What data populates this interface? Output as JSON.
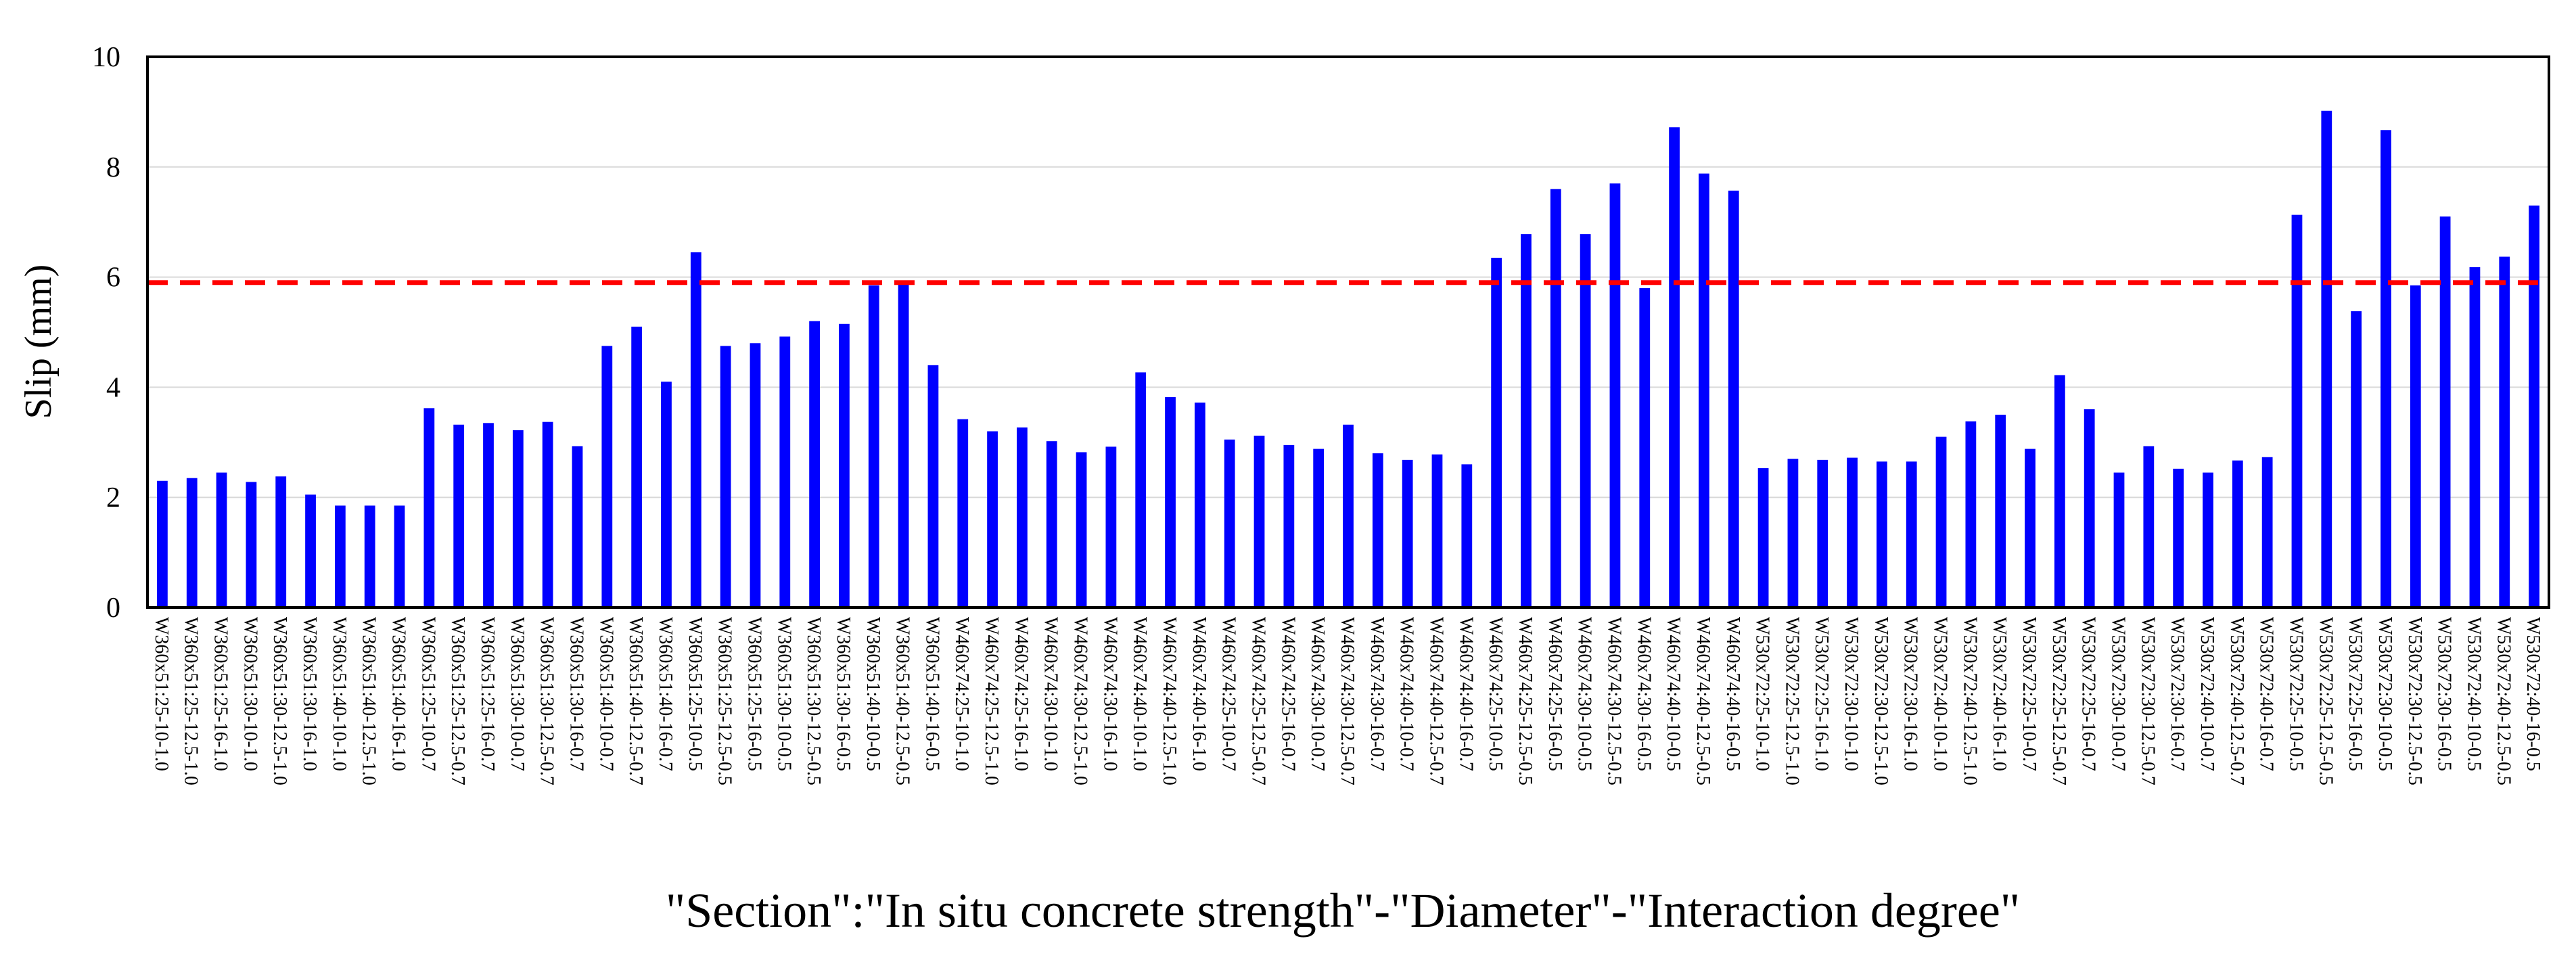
{
  "chart_data": {
    "type": "bar",
    "title": "",
    "xlabel": "\"Section\":\"In situ concrete strength\"-\"Diameter\"-\"Interaction degree\"",
    "ylabel": "Slip (mm)",
    "ylim": [
      0,
      10
    ],
    "yticks": [
      "0",
      "2",
      "4",
      "6",
      "8",
      "10"
    ],
    "grid": true,
    "legend": "none",
    "colors": {
      "bar": "#0000ff",
      "reference_line": "#ff0000",
      "grid": "#d9d9d9",
      "frame": "#000000"
    },
    "reference_line": {
      "y": 5.9,
      "style": "dashed"
    },
    "categories": [
      "W360x51:25-10-1.0",
      "W360x51:25-12.5-1.0",
      "W360x51:25-16-1.0",
      "W360x51:30-10-1.0",
      "W360x51:30-12.5-1.0",
      "W360x51:30-16-1.0",
      "W360x51:40-10-1.0",
      "W360x51:40-12.5-1.0",
      "W360x51:40-16-1.0",
      "W360x51:25-10-0.7",
      "W360x51:25-12.5-0.7",
      "W360x51:25-16-0.7",
      "W360x51:30-10-0.7",
      "W360x51:30-12.5-0.7",
      "W360x51:30-16-0.7",
      "W360x51:40-10-0.7",
      "W360x51:40-12.5-0.7",
      "W360x51:40-16-0.7",
      "W360x51:25-10-0.5",
      "W360x51:25-12.5-0.5",
      "W360x51:25-16-0.5",
      "W360x51:30-10-0.5",
      "W360x51:30-12.5-0.5",
      "W360x51:30-16-0.5",
      "W360x51:40-10-0.5",
      "W360x51:40-12.5-0.5",
      "W360x51:40-16-0.5",
      "W460x74:25-10-1.0",
      "W460x74:25-12.5-1.0",
      "W460x74:25-16-1.0",
      "W460x74:30-10-1.0",
      "W460x74:30-12.5-1.0",
      "W460x74:30-16-1.0",
      "W460x74:40-10-1.0",
      "W460x74:40-12.5-1.0",
      "W460x74:40-16-1.0",
      "W460x74:25-10-0.7",
      "W460x74:25-12.5-0.7",
      "W460x74:25-16-0.7",
      "W460x74:30-10-0.7",
      "W460x74:30-12.5-0.7",
      "W460x74:30-16-0.7",
      "W460x74:40-10-0.7",
      "W460x74:40-12.5-0.7",
      "W460x74:40-16-0.7",
      "W460x74:25-10-0.5",
      "W460x74:25-12.5-0.5",
      "W460x74:25-16-0.5",
      "W460x74:30-10-0.5",
      "W460x74:30-12.5-0.5",
      "W460x74:30-16-0.5",
      "W460x74:40-10-0.5",
      "W460x74:40-12.5-0.5",
      "W460x74:40-16-0.5",
      "W530x72:25-10-1.0",
      "W530x72:25-12.5-1.0",
      "W530x72:25-16-1.0",
      "W530x72:30-10-1.0",
      "W530x72:30-12.5-1.0",
      "W530x72:30-16-1.0",
      "W530x72:40-10-1.0",
      "W530x72:40-12.5-1.0",
      "W530x72:40-16-1.0",
      "W530x72:25-10-0.7",
      "W530x72:25-12.5-0.7",
      "W530x72:25-16-0.7",
      "W530x72:30-10-0.7",
      "W530x72:30-12.5-0.7",
      "W530x72:30-16-0.7",
      "W530x72:40-10-0.7",
      "W530x72:40-12.5-0.7",
      "W530x72:40-16-0.7",
      "W530x72:25-10-0.5",
      "W530x72:25-12.5-0.5",
      "W530x72:25-16-0.5",
      "W530x72:30-10-0.5",
      "W530x72:30-12.5-0.5",
      "W530x72:30-16-0.5",
      "W530x72:40-10-0.5",
      "W530x72:40-12.5-0.5",
      "W530x72:40-16-0.5"
    ],
    "values": [
      2.3,
      2.35,
      2.45,
      2.28,
      2.38,
      2.05,
      1.85,
      1.85,
      1.85,
      3.62,
      3.32,
      3.35,
      3.22,
      3.37,
      2.93,
      4.75,
      5.1,
      4.1,
      6.45,
      4.75,
      4.8,
      4.92,
      5.2,
      5.15,
      5.85,
      5.88,
      4.4,
      3.42,
      3.2,
      3.27,
      3.02,
      2.82,
      2.92,
      4.27,
      3.82,
      3.72,
      3.05,
      3.12,
      2.95,
      2.88,
      3.32,
      2.8,
      2.68,
      2.78,
      2.6,
      6.35,
      6.78,
      7.6,
      6.78,
      7.7,
      5.8,
      8.72,
      7.88,
      7.57,
      2.53,
      2.7,
      2.68,
      2.72,
      2.65,
      2.65,
      3.1,
      3.38,
      3.5,
      2.88,
      4.22,
      3.6,
      2.45,
      2.93,
      2.52,
      2.45,
      2.67,
      2.73,
      7.13,
      9.02,
      5.38,
      8.67,
      5.85,
      7.1,
      6.18,
      6.37,
      7.3
    ]
  }
}
